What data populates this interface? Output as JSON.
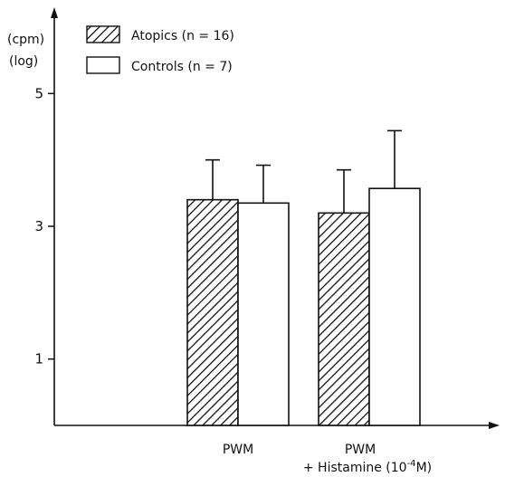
{
  "chart_data": {
    "type": "bar",
    "title": "",
    "ylabel": [
      "(cpm)",
      "(log)"
    ],
    "ylim": [
      0,
      6
    ],
    "yticks": [
      1,
      3,
      5
    ],
    "categories": [
      {
        "lines": [
          "PWM"
        ]
      },
      {
        "lines": [
          "PWM",
          "+ Histamine (10",
          "-4",
          "M)"
        ]
      }
    ],
    "series": [
      {
        "name": "Atopics (n = 16)",
        "pattern": "hatched",
        "values": [
          3.4,
          3.2
        ],
        "errors": [
          0.6,
          0.65
        ]
      },
      {
        "name": "Controls (n = 7)",
        "pattern": "open",
        "values": [
          3.35,
          3.57
        ],
        "errors": [
          0.57,
          0.87
        ]
      }
    ],
    "legend_position": "top-left",
    "grid": false,
    "colors": {
      "ink": "#111111",
      "background": "#ffffff"
    }
  }
}
